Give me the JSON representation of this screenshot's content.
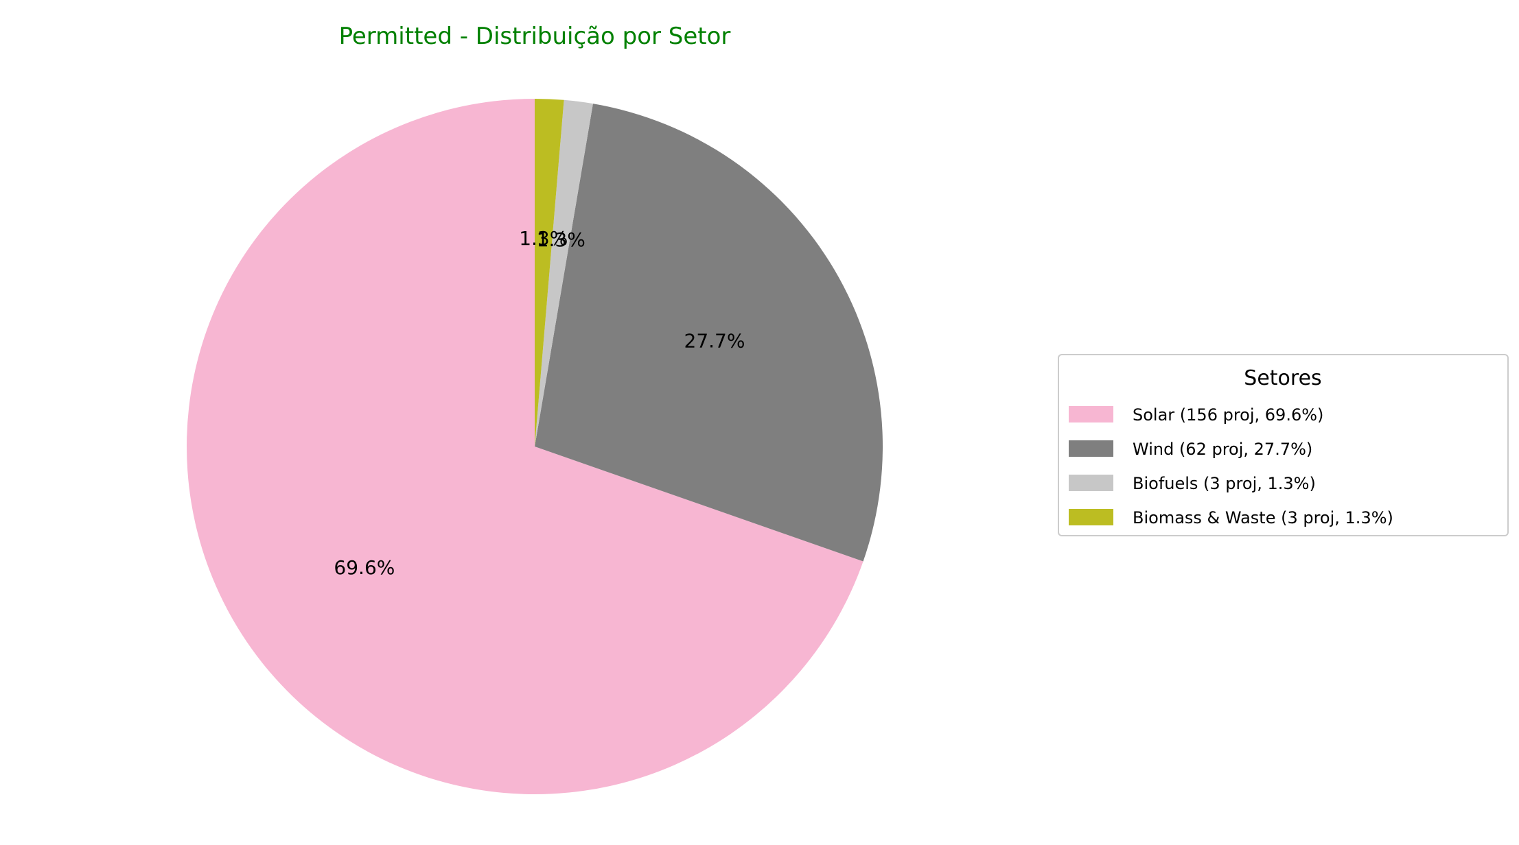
{
  "chart_data": {
    "type": "pie",
    "title": "Permitted - Distribuição por Setor",
    "title_color": "#008000",
    "start_angle_deg": 90,
    "direction": "counterclockwise",
    "slices": [
      {
        "label": "Solar",
        "value": 156,
        "percent_label": "69.6%",
        "color": "#f7b6d2"
      },
      {
        "label": "Wind",
        "value": 62,
        "percent_label": "27.7%",
        "color": "#7f7f7f"
      },
      {
        "label": "Biofuels",
        "value": 3,
        "percent_label": "1.3%",
        "color": "#c7c7c7"
      },
      {
        "label": "Biomass & Waste",
        "value": 3,
        "percent_label": "1.3%",
        "color": "#bcbd22"
      }
    ],
    "legend": {
      "title": "Setores",
      "placement": "center-right",
      "entries": [
        "Solar (156 proj, 69.6%)",
        "Wind (62 proj, 27.7%)",
        "Biofuels (3 proj, 1.3%)",
        "Biomass & Waste (3 proj, 1.3%)"
      ]
    }
  }
}
